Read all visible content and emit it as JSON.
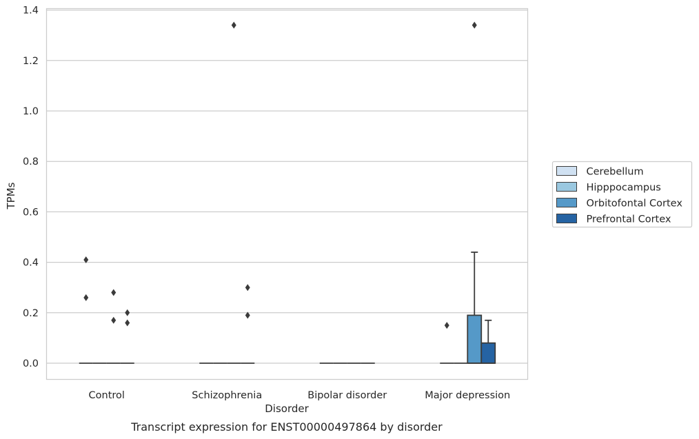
{
  "chart_data": {
    "type": "box",
    "caption": "Transcript expression for ENST00000497864 by disorder",
    "xlabel": "Disorder",
    "ylabel": "TPMs",
    "categories": [
      "Control",
      "Schizophrenia",
      "Bipolar disorder",
      "Major depression"
    ],
    "y_ticks": [
      "0.0",
      "0.2",
      "0.4",
      "0.6",
      "0.8",
      "1.0",
      "1.2",
      "1.4"
    ],
    "y_tick_values": [
      0.0,
      0.2,
      0.4,
      0.6,
      0.8,
      1.0,
      1.2,
      1.4
    ],
    "ylim": [
      -0.065,
      1.41
    ],
    "grid": "horizontal",
    "legend_placement": "right",
    "series": [
      {
        "name": "Cerebellum",
        "color": "#d0e1f2",
        "boxes": [
          {
            "q1": 0,
            "median": 0,
            "q3": 0,
            "whisker_low": 0,
            "whisker_high": 0,
            "outliers": [
              0.41,
              0.26
            ]
          },
          {
            "q1": 0,
            "median": 0,
            "q3": 0,
            "whisker_low": 0,
            "whisker_high": 0,
            "outliers": []
          },
          {
            "q1": 0,
            "median": 0,
            "q3": 0,
            "whisker_low": 0,
            "whisker_high": 0,
            "outliers": []
          },
          {
            "q1": 0,
            "median": 0,
            "q3": 0,
            "whisker_low": 0,
            "whisker_high": 0,
            "outliers": [
              0.15
            ]
          }
        ]
      },
      {
        "name": "Hipppocampus",
        "color": "#9ac8e0",
        "boxes": [
          {
            "q1": 0,
            "median": 0,
            "q3": 0,
            "whisker_low": 0,
            "whisker_high": 0,
            "outliers": []
          },
          {
            "q1": 0,
            "median": 0,
            "q3": 0,
            "whisker_low": 0,
            "whisker_high": 0,
            "outliers": []
          },
          {
            "q1": 0,
            "median": 0,
            "q3": 0,
            "whisker_low": 0,
            "whisker_high": 0,
            "outliers": []
          },
          {
            "q1": 0,
            "median": 0,
            "q3": 0,
            "whisker_low": 0,
            "whisker_high": 0,
            "outliers": []
          }
        ]
      },
      {
        "name": "Orbitofontal Cortex",
        "color": "#5599c8",
        "boxes": [
          {
            "q1": 0,
            "median": 0,
            "q3": 0,
            "whisker_low": 0,
            "whisker_high": 0,
            "outliers": [
              0.28,
              0.17
            ]
          },
          {
            "q1": 0,
            "median": 0,
            "q3": 0,
            "whisker_low": 0,
            "whisker_high": 0,
            "outliers": [
              1.34
            ]
          },
          {
            "q1": 0,
            "median": 0,
            "q3": 0,
            "whisker_low": 0,
            "whisker_high": 0,
            "outliers": []
          },
          {
            "q1": 0,
            "median": 0,
            "q3": 0.19,
            "whisker_low": 0,
            "whisker_high": 0.44,
            "outliers": [
              1.34
            ]
          }
        ]
      },
      {
        "name": "Prefrontal Cortex",
        "color": "#2563a3",
        "boxes": [
          {
            "q1": 0,
            "median": 0,
            "q3": 0,
            "whisker_low": 0,
            "whisker_high": 0,
            "outliers": [
              0.2,
              0.16
            ]
          },
          {
            "q1": 0,
            "median": 0,
            "q3": 0,
            "whisker_low": 0,
            "whisker_high": 0,
            "outliers": [
              0.3,
              0.19
            ]
          },
          {
            "q1": 0,
            "median": 0,
            "q3": 0,
            "whisker_low": 0,
            "whisker_high": 0,
            "outliers": []
          },
          {
            "q1": 0,
            "median": 0,
            "q3": 0.08,
            "whisker_low": 0,
            "whisker_high": 0.17,
            "outliers": []
          }
        ]
      }
    ]
  }
}
